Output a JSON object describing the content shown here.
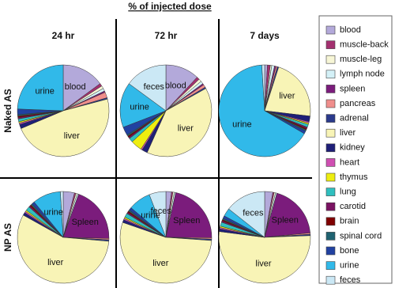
{
  "title": "% of injected dose",
  "columns": [
    "24 hr",
    "72 hr",
    "7 days"
  ],
  "rows": [
    "Naked AS",
    "NP AS"
  ],
  "legend": {
    "labels": [
      "blood",
      "muscle-back",
      "muscle-leg",
      "lymph node",
      "spleen",
      "pancreas",
      "adrenal",
      "liver",
      "kidney",
      "heart",
      "thymus",
      "lung",
      "carotid",
      "brain",
      "spinal cord",
      "bone",
      "urine",
      "feces"
    ],
    "colors": [
      "#b3a9da",
      "#a3306f",
      "#f7f6d6",
      "#d4f1f7",
      "#7b1c7c",
      "#f08e8c",
      "#2b3a8c",
      "#f8f4b6",
      "#1f1f78",
      "#cf4fb2",
      "#eeee10",
      "#2fbfbf",
      "#7a1262",
      "#800000",
      "#1f6270",
      "#2141a1",
      "#31b9e9",
      "#cbe8f5"
    ]
  },
  "chart_data": [
    {
      "type": "pie",
      "values": [
        15,
        1,
        1,
        1,
        0.5,
        2,
        0.5,
        48,
        1.5,
        0.5,
        0.5,
        1,
        0.5,
        0.5,
        0.5,
        2,
        24.5,
        0
      ],
      "slice_labels": [
        "blood",
        null,
        null,
        null,
        null,
        null,
        null,
        "liver",
        null,
        null,
        null,
        null,
        null,
        null,
        null,
        null,
        "urine",
        null
      ]
    },
    {
      "type": "pie",
      "values": [
        12,
        1,
        1,
        1,
        0.5,
        1,
        0.5,
        40,
        2,
        0.5,
        4,
        1.5,
        0.5,
        0.5,
        0.5,
        3,
        16,
        15
      ],
      "slice_labels": [
        "blood",
        null,
        null,
        null,
        null,
        null,
        null,
        "liver",
        null,
        null,
        null,
        null,
        null,
        null,
        null,
        null,
        "urine",
        "feces"
      ]
    },
    {
      "type": "pie",
      "values": [
        1,
        1,
        0.5,
        1,
        0.5,
        0.5,
        0.5,
        22,
        2,
        0.5,
        0.5,
        1,
        0.5,
        0.5,
        0.5,
        1,
        66,
        1
      ],
      "slice_labels": [
        null,
        null,
        null,
        null,
        null,
        null,
        null,
        "liver",
        null,
        null,
        null,
        null,
        null,
        null,
        null,
        null,
        "urine",
        null
      ]
    },
    {
      "type": "pie",
      "values": [
        4,
        0.5,
        0.5,
        0.5,
        20,
        0.5,
        0.5,
        57,
        1,
        0.5,
        0.5,
        1.5,
        0.5,
        0.5,
        0.5,
        1,
        10,
        1
      ],
      "slice_labels": [
        null,
        null,
        null,
        null,
        "Spleen",
        null,
        null,
        "liver",
        null,
        null,
        null,
        null,
        null,
        null,
        null,
        null,
        "urine",
        null
      ]
    },
    {
      "type": "pie",
      "values": [
        2,
        0.5,
        0.5,
        0.5,
        22,
        0.5,
        0.5,
        55,
        1,
        0.5,
        0.5,
        1.5,
        0.5,
        0.5,
        0.5,
        1,
        8,
        6
      ],
      "slice_labels": [
        null,
        null,
        null,
        null,
        "Spleen",
        null,
        null,
        "liver",
        null,
        null,
        null,
        null,
        null,
        null,
        null,
        null,
        "urine",
        "feces"
      ]
    },
    {
      "type": "pie",
      "values": [
        3,
        0.5,
        0.5,
        0.5,
        20,
        0.5,
        0.5,
        55,
        1,
        0.5,
        0.5,
        1.5,
        0.5,
        0.5,
        0.5,
        1,
        3,
        15
      ],
      "slice_labels": [
        null,
        null,
        null,
        null,
        "Spleen",
        null,
        null,
        "liver",
        null,
        null,
        null,
        null,
        null,
        null,
        null,
        null,
        null,
        "feces"
      ]
    }
  ]
}
